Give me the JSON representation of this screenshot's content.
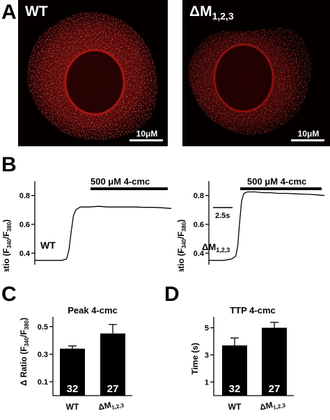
{
  "figure": {
    "panel_letters": {
      "a": "A",
      "b": "B",
      "c": "C",
      "d": "D"
    },
    "panel_a": {
      "left_label": "WT",
      "right_label": "ΔM",
      "right_label_sub": "1,2,3",
      "scalebar_label": "10μM",
      "fluorescence_color": "#e0201c"
    },
    "panel_b": {
      "stimulus_label": "500 μM 4-cmc",
      "ylabel_main": "Ratio (F",
      "ylabel_sub1": "340",
      "ylabel_sep": "/F",
      "ylabel_sub2": "380",
      "ylabel_close": ")",
      "left_trace_label": "WT",
      "right_trace_label": "ΔM",
      "right_trace_label_sub": "1,2,3",
      "time_scalebar_label": "2.5s"
    },
    "panel_c": {
      "title": "Peak 4-cmc",
      "ylabel_main": "Δ Ratio (F",
      "ylabel_sub1": "340",
      "ylabel_sep": "/F",
      "ylabel_sub2": "380",
      "ylabel_close": ")",
      "x_wt": "WT",
      "x_dm": "ΔM",
      "x_dm_sub": "1,2,3"
    },
    "panel_d": {
      "title": "TTP 4-cmc",
      "ylabel": "Time (s)",
      "x_wt": "WT",
      "x_dm": "ΔM",
      "x_dm_sub": "1,2,3"
    }
  },
  "chart_data": [
    {
      "type": "line",
      "panel": "B-left",
      "y_ticks": [
        "0.4",
        "0.6",
        "0.8"
      ],
      "ylim": [
        0.32,
        0.9
      ],
      "stimulus": "500 μM 4-cmc",
      "series": [
        {
          "x": [
            0,
            2,
            4,
            6,
            7,
            7.5,
            8,
            8.5,
            9,
            9.5,
            10,
            12,
            14,
            16,
            18,
            20,
            22,
            24,
            26,
            28,
            30
          ],
          "y": [
            0.35,
            0.35,
            0.35,
            0.35,
            0.36,
            0.42,
            0.55,
            0.66,
            0.7,
            0.71,
            0.72,
            0.72,
            0.725,
            0.72,
            0.72,
            0.72,
            0.72,
            0.718,
            0.718,
            0.715,
            0.71
          ]
        }
      ]
    },
    {
      "type": "line",
      "panel": "B-right",
      "y_ticks": [
        "0.4",
        "0.6",
        "0.8"
      ],
      "ylim": [
        0.32,
        0.9
      ],
      "stimulus": "500 μM 4-cmc",
      "series": [
        {
          "x": [
            0,
            2,
            4,
            6,
            7,
            7.5,
            8,
            8.5,
            9,
            9.5,
            10,
            12,
            14,
            16,
            18,
            20,
            22,
            24,
            26,
            28,
            30
          ],
          "y": [
            0.35,
            0.35,
            0.35,
            0.36,
            0.38,
            0.45,
            0.62,
            0.76,
            0.81,
            0.82,
            0.825,
            0.825,
            0.82,
            0.82,
            0.815,
            0.815,
            0.812,
            0.81,
            0.808,
            0.805,
            0.8
          ]
        }
      ]
    },
    {
      "type": "bar",
      "panel": "C",
      "title": "Peak 4-cmc",
      "categories": [
        "WT",
        "ΔM1,2,3"
      ],
      "values": [
        0.34,
        0.45
      ],
      "errors": [
        0.02,
        0.065
      ],
      "bar_labels": [
        "32",
        "27"
      ],
      "y_ticks": [
        "0.1",
        "0.3",
        "0.5"
      ],
      "ylim": [
        0.0,
        0.57
      ]
    },
    {
      "type": "bar",
      "panel": "D",
      "title": "TTP 4-cmc",
      "categories": [
        "WT",
        "ΔM1,2,3"
      ],
      "values": [
        3.7,
        5.0
      ],
      "errors": [
        0.55,
        0.4
      ],
      "bar_labels": [
        "32",
        "27"
      ],
      "y_ticks": [
        "1",
        "3",
        "5"
      ],
      "ylim": [
        0.0,
        5.8
      ]
    }
  ]
}
